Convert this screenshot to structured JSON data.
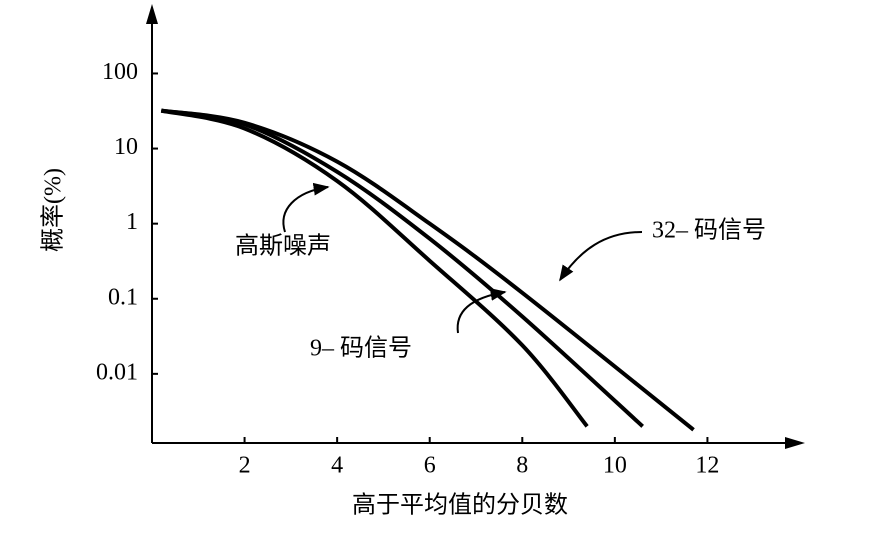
{
  "chart_data": {
    "type": "line",
    "log_y": true,
    "x_label": "高于平均值的分贝数",
    "y_label": "概率(%)",
    "xlim": [
      0,
      14
    ],
    "xticks": [
      2,
      4,
      6,
      8,
      10,
      12
    ],
    "ylim": [
      0.0012,
      700
    ],
    "yticks": [
      100,
      10,
      1,
      0.1,
      0.01
    ],
    "color": "#000000",
    "series": [
      {
        "name": "高斯噪声",
        "x": [
          0.2,
          2,
          4,
          6,
          8,
          9.4
        ],
        "values": [
          32,
          18.5,
          3.7,
          0.32,
          0.024,
          0.002
        ]
      },
      {
        "name": "9– 码信号",
        "x": [
          0.2,
          2,
          4,
          6,
          8,
          10.6
        ],
        "values": [
          32,
          21,
          4.9,
          0.63,
          0.058,
          0.002
        ]
      },
      {
        "name": "32– 码信号",
        "x": [
          0.2,
          2,
          4,
          6,
          8,
          11.7
        ],
        "values": [
          32,
          22,
          6.7,
          1,
          0.12,
          0.0018
        ]
      }
    ]
  }
}
